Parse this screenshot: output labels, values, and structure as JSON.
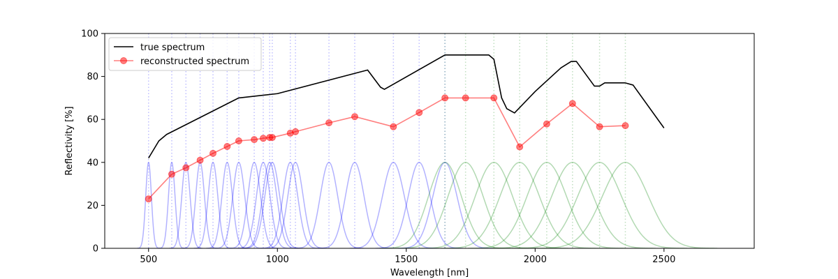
{
  "chart_data": {
    "type": "line",
    "title": "",
    "xlabel": "Wavelength [nm]",
    "ylabel": "Reflectivity [%]",
    "xlim": [
      330,
      2850
    ],
    "ylim": [
      0,
      100
    ],
    "x_ticks": [
      500,
      1000,
      1500,
      2000,
      2500
    ],
    "y_ticks": [
      0,
      20,
      40,
      60,
      80,
      100
    ],
    "grid": false,
    "legend_position": "top-left",
    "series": [
      {
        "name": "true spectrum",
        "color": "#000000",
        "style": "line",
        "x": [
          500,
          540,
          570,
          850,
          1000,
          1350,
          1400,
          1415,
          1650,
          1820,
          1840,
          1870,
          1890,
          1920,
          2000,
          2100,
          2140,
          2160,
          2230,
          2250,
          2270,
          2350,
          2380,
          2500
        ],
        "y": [
          42,
          50,
          53,
          70,
          72,
          83,
          75,
          74,
          90,
          90,
          88,
          70,
          65,
          63,
          73,
          84,
          87,
          87,
          75.5,
          75.5,
          77,
          77,
          76,
          56
        ]
      },
      {
        "name": "reconstructed spectrum",
        "color": "#ff0000",
        "style": "line-markers",
        "x": [
          500,
          590,
          645,
          700,
          750,
          805,
          850,
          910,
          945,
          970,
          980,
          1050,
          1070,
          1200,
          1300,
          1450,
          1550,
          1650,
          1730,
          1840,
          1940,
          2045,
          2145,
          2250,
          2350
        ],
        "y": [
          23,
          34.5,
          37.5,
          41,
          44.2,
          47.4,
          50,
          50.6,
          51.2,
          51.6,
          51.6,
          53.6,
          54.3,
          58.4,
          61.3,
          56.6,
          63.2,
          70,
          70,
          70,
          47.2,
          57.9,
          67.4,
          56.6,
          57.1
        ]
      }
    ],
    "bands": {
      "peak_value": 40,
      "blue": {
        "color": "#0000ff",
        "centers": [
          500,
          590,
          645,
          700,
          750,
          805,
          850,
          910,
          945,
          970,
          980,
          1050,
          1070,
          1200,
          1300,
          1450,
          1550,
          1650
        ],
        "fwhm": [
          26,
          30,
          38,
          40,
          44,
          48,
          55,
          58,
          62,
          65,
          68,
          68,
          70,
          80,
          85,
          100,
          100,
          110
        ]
      },
      "green": {
        "color": "#008000",
        "centers": [
          1650,
          1730,
          1840,
          1940,
          2045,
          2145,
          2250,
          2350
        ],
        "fwhm": [
          150,
          160,
          170,
          180,
          180,
          190,
          200,
          210
        ]
      }
    }
  }
}
